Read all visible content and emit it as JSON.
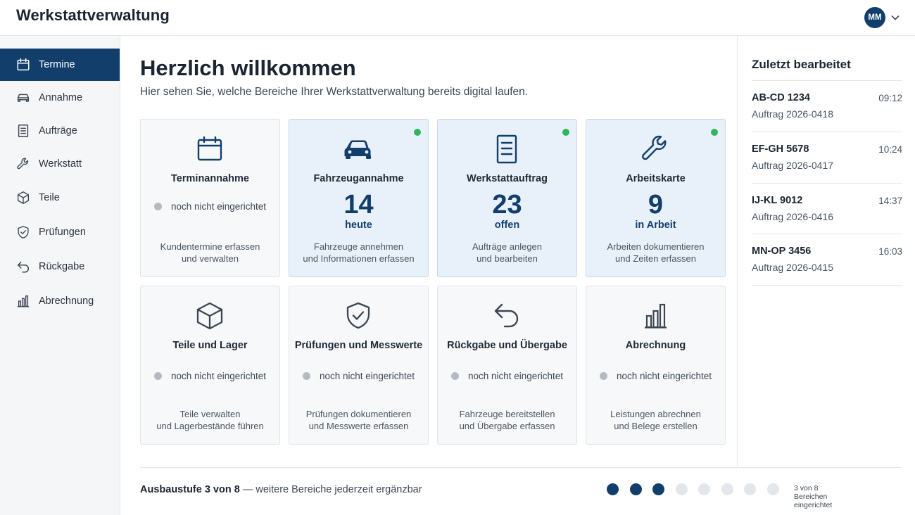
{
  "app": {
    "title": "Werkstattverwaltung"
  },
  "user": {
    "initials": "MM"
  },
  "sidebar": {
    "items": [
      {
        "label": "Termine",
        "icon": "calendar-icon",
        "active": true
      },
      {
        "label": "Annahme",
        "icon": "car-icon",
        "active": false
      },
      {
        "label": "Aufträge",
        "icon": "document-icon",
        "active": false
      },
      {
        "label": "Werkstatt",
        "icon": "wrench-icon",
        "active": false
      },
      {
        "label": "Teile",
        "icon": "box-icon",
        "active": false
      },
      {
        "label": "Prüfungen",
        "icon": "shield-check-icon",
        "active": false
      },
      {
        "label": "Rückgabe",
        "icon": "return-arrow-icon",
        "active": false
      },
      {
        "label": "Abrechnung",
        "icon": "bar-chart-icon",
        "active": false
      }
    ]
  },
  "main": {
    "title": "Herzlich willkommen",
    "subtitle": "Hier sehen Sie, welche Bereiche Ihrer Werkstattverwaltung bereits digital laufen.",
    "tiles": [
      {
        "title": "Terminannahme",
        "icon": "calendar-icon",
        "status": "noch nicht eingerichtet",
        "desc1": "Kundentermine erfassen",
        "desc2": "und verwalten",
        "active": false
      },
      {
        "title": "Fahrzeugannahme",
        "icon": "car-icon",
        "count": "14",
        "unit": "heute",
        "desc1": "Fahrzeuge annehmen",
        "desc2": "und Informationen erfassen",
        "active": true
      },
      {
        "title": "Werkstattauftrag",
        "icon": "document-icon",
        "count": "23",
        "unit": "offen",
        "desc1": "Aufträge anlegen",
        "desc2": "und bearbeiten",
        "active": true
      },
      {
        "title": "Arbeitskarte",
        "icon": "wrench-icon",
        "count": "9",
        "unit": "in Arbeit",
        "desc1": "Arbeiten dokumentieren",
        "desc2": "und Zeiten erfassen",
        "active": true
      },
      {
        "title": "Teile und Lager",
        "icon": "box-icon",
        "status": "noch nicht eingerichtet",
        "desc1": "Teile verwalten",
        "desc2": "und Lagerbestände führen",
        "active": false
      },
      {
        "title": "Prüfungen und Messwerte",
        "icon": "shield-check-icon",
        "status": "noch nicht eingerichtet",
        "desc1": "Prüfungen dokumentieren",
        "desc2": "und Messwerte erfassen",
        "active": false
      },
      {
        "title": "Rückgabe und Übergabe",
        "icon": "return-arrow-icon",
        "status": "noch nicht eingerichtet",
        "desc1": "Fahrzeuge bereitstellen",
        "desc2": "und Übergabe erfassen",
        "active": false
      },
      {
        "title": "Abrechnung",
        "icon": "bar-chart-icon",
        "status": "noch nicht eingerichtet",
        "desc1": "Leistungen abrechnen",
        "desc2": "und Belege erstellen",
        "active": false
      }
    ],
    "footer": {
      "stage_label": "Ausbaustufe 3 von 8",
      "stage_suffix": " — weitere Bereiche jederzeit ergänzbar",
      "progress_done": 3,
      "progress_total": 8,
      "progress_label": "3 von 8 Bereichen eingerichtet"
    }
  },
  "recent": {
    "title": "Zuletzt bearbeitet",
    "items": [
      {
        "plate": "AB-CD 1234",
        "order": "Auftrag 2026-0418",
        "time": "09:12"
      },
      {
        "plate": "EF-GH 5678",
        "order": "Auftrag 2026-0417",
        "time": "10:24"
      },
      {
        "plate": "IJ-KL 9012",
        "order": "Auftrag 2026-0416",
        "time": "14:37"
      },
      {
        "plate": "MN-OP 3456",
        "order": "Auftrag 2026-0415",
        "time": "16:03"
      }
    ]
  },
  "colors": {
    "primary": "#123e6b",
    "live": "#2fb65c",
    "inactive_dot": "#b4bac2",
    "active_tile_bg": "#e8f1fa"
  }
}
